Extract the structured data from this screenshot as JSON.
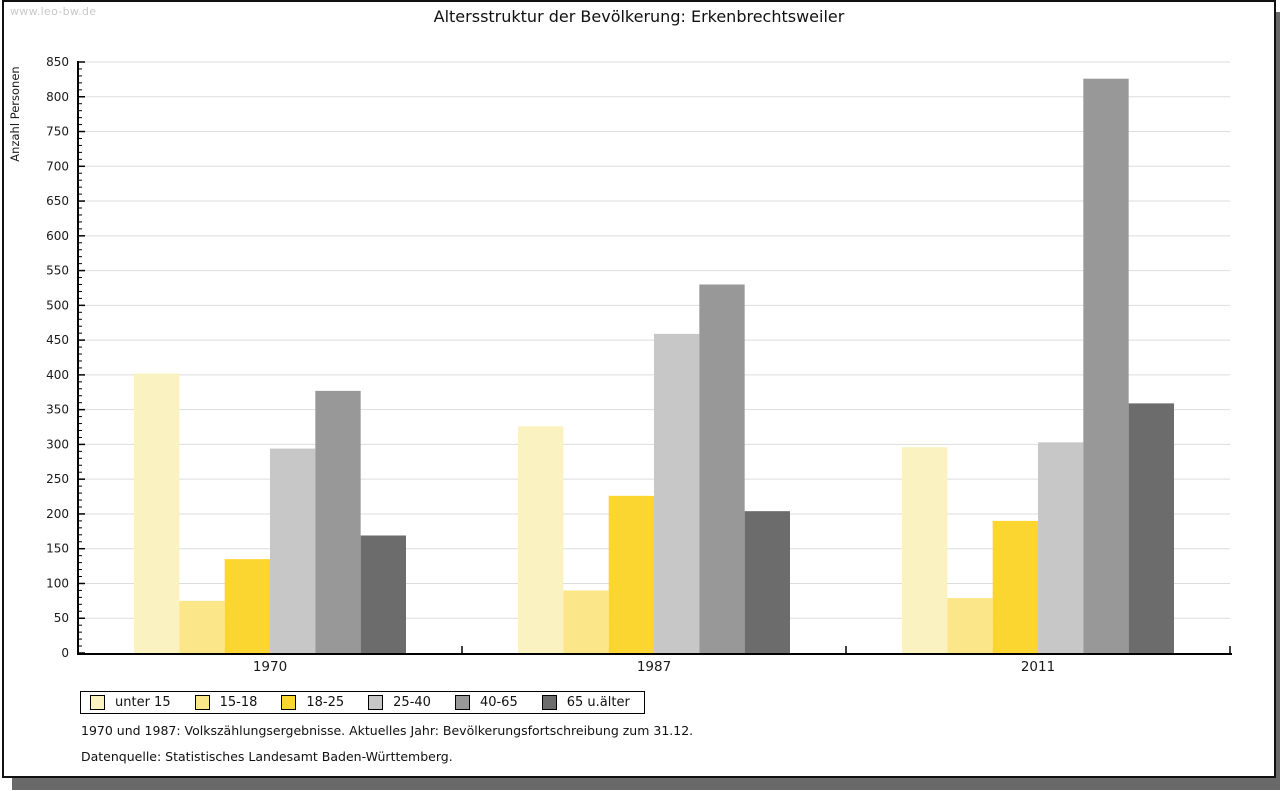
{
  "watermark": "www.leo-bw.de",
  "footnotes": {
    "line1": "1970 und 1987: Volkszählungsergebnisse. Aktuelles Jahr: Bevölkerungsfortschreibung zum 31.12.",
    "line2": "Datenquelle: Statistisches Landesamt Baden-Württemberg."
  },
  "colors": {
    "grid": "#dddddd",
    "axis": "#000000",
    "text": "#1a1a1a",
    "watermark": "#c9c9c9",
    "shadow": "#696969"
  },
  "chart_data": {
    "type": "bar",
    "title": "Altersstruktur der Bevölkerung: Erkenbrechtsweiler",
    "xlabel": "",
    "ylabel": "Anzahl Personen",
    "categories": [
      "1970",
      "1987",
      "2011"
    ],
    "series": [
      {
        "name": "unter 15",
        "color": "#faf2c1",
        "values": [
          402,
          326,
          296
        ]
      },
      {
        "name": "15-18",
        "color": "#fbe689",
        "values": [
          75,
          90,
          79
        ]
      },
      {
        "name": "18-25",
        "color": "#fbd630",
        "values": [
          135,
          226,
          190
        ]
      },
      {
        "name": "25-40",
        "color": "#c7c7c7",
        "values": [
          294,
          459,
          303
        ]
      },
      {
        "name": "40-65",
        "color": "#989898",
        "values": [
          377,
          530,
          826
        ]
      },
      {
        "name": "65 u.älter",
        "color": "#6c6c6c",
        "values": [
          169,
          204,
          359
        ]
      }
    ],
    "ylim": [
      0,
      850
    ],
    "ytick_step": 50,
    "minor_tick_step": 10,
    "grid": true,
    "legend_position": "bottom",
    "bars_per_group": 6
  }
}
